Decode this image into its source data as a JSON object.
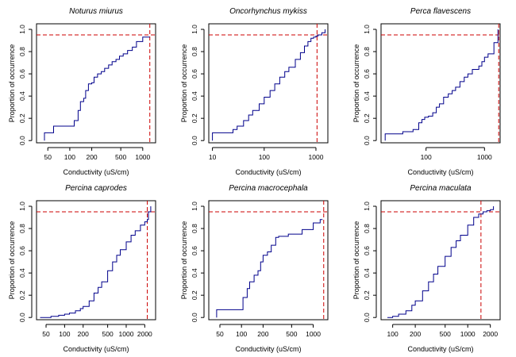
{
  "colors": {
    "curve": "#00008b",
    "reference": "#cc0000",
    "axis": "#000000"
  },
  "chart_data": [
    {
      "type": "line",
      "step": true,
      "xscale": "log",
      "title": "Noturus miurus",
      "xlabel": "Conductivity (uS/cm)",
      "ylabel": "Proportion of occurrence",
      "xlim": [
        35,
        1500
      ],
      "ylim": [
        -0.02,
        1.05
      ],
      "xticks": [
        50,
        100,
        200,
        500,
        1000
      ],
      "xticklabels": [
        "50",
        "100",
        "200",
        "500",
        "1000"
      ],
      "yticks": [
        0,
        0.2,
        0.4,
        0.6,
        0.8,
        1.0
      ],
      "yticklabels": [
        "0.0",
        "0.2",
        "0.4",
        "0.6",
        "0.8",
        "1.0"
      ],
      "ref_y": 0.95,
      "ref_x": 1250,
      "x": [
        45,
        45,
        60,
        60,
        115,
        115,
        130,
        130,
        140,
        140,
        155,
        155,
        165,
        165,
        180,
        180,
        200,
        200,
        215,
        215,
        240,
        240,
        270,
        270,
        300,
        300,
        340,
        340,
        380,
        380,
        430,
        430,
        480,
        480,
        540,
        540,
        620,
        620,
        720,
        720,
        820,
        820,
        1000,
        1000,
        1250
      ],
      "y": [
        0.0,
        0.07,
        0.07,
        0.13,
        0.13,
        0.18,
        0.18,
        0.27,
        0.27,
        0.35,
        0.35,
        0.38,
        0.38,
        0.45,
        0.45,
        0.51,
        0.51,
        0.52,
        0.52,
        0.57,
        0.57,
        0.6,
        0.6,
        0.62,
        0.62,
        0.65,
        0.65,
        0.68,
        0.68,
        0.71,
        0.71,
        0.73,
        0.73,
        0.76,
        0.76,
        0.78,
        0.78,
        0.81,
        0.81,
        0.84,
        0.84,
        0.89,
        0.89,
        0.93,
        0.93
      ]
    },
    {
      "type": "line",
      "step": true,
      "xscale": "log",
      "title": "Oncorhynchus mykiss",
      "xlabel": "Conductivity (uS/cm)",
      "ylabel": "Proportion of occurrence",
      "xlim": [
        8.5,
        1700
      ],
      "ylim": [
        -0.02,
        1.05
      ],
      "xticks": [
        10,
        100,
        1000
      ],
      "xticklabels": [
        "10",
        "100",
        "1000"
      ],
      "yticks": [
        0,
        0.2,
        0.4,
        0.6,
        0.8,
        1.0
      ],
      "yticklabels": [
        "0.0",
        "0.2",
        "0.4",
        "0.6",
        "0.8",
        "1.0"
      ],
      "ref_y": 0.95,
      "ref_x": 1050,
      "x": [
        10,
        10,
        20,
        25,
        30,
        40,
        50,
        60,
        80,
        100,
        130,
        160,
        200,
        250,
        300,
        400,
        500,
        600,
        700,
        800,
        900,
        1000,
        1100,
        1300,
        1500
      ],
      "y": [
        0.0,
        0.07,
        0.07,
        0.1,
        0.13,
        0.18,
        0.23,
        0.27,
        0.33,
        0.39,
        0.45,
        0.51,
        0.57,
        0.62,
        0.66,
        0.73,
        0.79,
        0.85,
        0.89,
        0.92,
        0.93,
        0.94,
        0.95,
        0.97,
        1.0
      ]
    },
    {
      "type": "line",
      "step": true,
      "xscale": "log",
      "title": "Perca flavescens",
      "xlabel": "Conductivity (uS/cm)",
      "ylabel": "Proportion of occurrence",
      "xlim": [
        17,
        1850
      ],
      "ylim": [
        -0.02,
        1.05
      ],
      "xticks": [
        100,
        1000
      ],
      "xticklabels": [
        "100",
        "1000"
      ],
      "yticks": [
        0,
        0.2,
        0.4,
        0.6,
        0.8,
        1.0
      ],
      "yticklabels": [
        "0.0",
        "0.2",
        "0.4",
        "0.6",
        "0.8",
        "1.0"
      ],
      "ref_y": 0.95,
      "ref_x": 1750,
      "x": [
        20,
        20,
        40,
        40,
        60,
        60,
        75,
        75,
        85,
        85,
        95,
        95,
        110,
        110,
        130,
        130,
        150,
        150,
        170,
        170,
        200,
        200,
        240,
        240,
        280,
        280,
        320,
        320,
        380,
        380,
        450,
        450,
        520,
        520,
        620,
        620,
        800,
        800,
        900,
        900,
        1000,
        1000,
        1150,
        1150,
        1450,
        1450,
        1700,
        1700
      ],
      "y": [
        0.0,
        0.06,
        0.06,
        0.08,
        0.08,
        0.1,
        0.1,
        0.16,
        0.16,
        0.19,
        0.19,
        0.21,
        0.21,
        0.22,
        0.22,
        0.25,
        0.25,
        0.3,
        0.3,
        0.33,
        0.33,
        0.39,
        0.39,
        0.42,
        0.42,
        0.45,
        0.45,
        0.48,
        0.48,
        0.53,
        0.53,
        0.57,
        0.57,
        0.6,
        0.6,
        0.64,
        0.64,
        0.67,
        0.67,
        0.71,
        0.71,
        0.75,
        0.75,
        0.78,
        0.78,
        0.88,
        0.88,
        1.0
      ]
    },
    {
      "type": "line",
      "step": true,
      "xscale": "log",
      "title": "Percina caprodes",
      "xlabel": "Conductivity (uS/cm)",
      "ylabel": "Proportion of occurrence",
      "xlim": [
        35,
        3000
      ],
      "ylim": [
        -0.02,
        1.05
      ],
      "xticks": [
        50,
        100,
        200,
        500,
        1000,
        2000
      ],
      "xticklabels": [
        "50",
        "100",
        "200",
        "500",
        "1000",
        "2000"
      ],
      "yticks": [
        0,
        0.2,
        0.4,
        0.6,
        0.8,
        1.0
      ],
      "yticklabels": [
        "0.0",
        "0.2",
        "0.4",
        "0.6",
        "0.8",
        "1.0"
      ],
      "ref_y": 0.95,
      "ref_x": 2200,
      "x": [
        40,
        60,
        80,
        100,
        120,
        150,
        180,
        200,
        250,
        300,
        350,
        400,
        500,
        600,
        700,
        800,
        1000,
        1200,
        1400,
        1700,
        2000,
        2200,
        2300,
        2500
      ],
      "y": [
        0.0,
        0.01,
        0.02,
        0.03,
        0.04,
        0.06,
        0.08,
        0.1,
        0.15,
        0.22,
        0.27,
        0.32,
        0.42,
        0.5,
        0.56,
        0.61,
        0.68,
        0.74,
        0.78,
        0.83,
        0.86,
        0.88,
        0.95,
        1.0
      ]
    },
    {
      "type": "line",
      "step": true,
      "xscale": "log",
      "title": "Percina macrocephala",
      "xlabel": "Conductivity (uS/cm)",
      "ylabel": "Proportion of occurrence",
      "xlim": [
        35,
        1600
      ],
      "ylim": [
        -0.02,
        1.05
      ],
      "xticks": [
        50,
        100,
        200,
        500,
        1000
      ],
      "xticklabels": [
        "50",
        "100",
        "200",
        "500",
        "1000"
      ],
      "yticks": [
        0,
        0.2,
        0.4,
        0.6,
        0.8,
        1.0
      ],
      "yticklabels": [
        "0.0",
        "0.2",
        "0.4",
        "0.6",
        "0.8",
        "1.0"
      ],
      "ref_y": 0.95,
      "ref_x": 1400,
      "x": [
        45,
        45,
        105,
        105,
        120,
        120,
        130,
        130,
        150,
        150,
        170,
        170,
        185,
        185,
        200,
        200,
        230,
        230,
        260,
        260,
        300,
        300,
        330,
        330,
        450,
        450,
        700,
        700,
        1000,
        1000,
        1250,
        1250,
        1350
      ],
      "y": [
        0.0,
        0.07,
        0.07,
        0.18,
        0.18,
        0.26,
        0.26,
        0.32,
        0.32,
        0.38,
        0.38,
        0.42,
        0.42,
        0.5,
        0.5,
        0.56,
        0.56,
        0.59,
        0.59,
        0.65,
        0.65,
        0.72,
        0.72,
        0.73,
        0.73,
        0.75,
        0.75,
        0.79,
        0.79,
        0.85,
        0.85,
        0.88,
        0.88
      ]
    },
    {
      "type": "line",
      "step": true,
      "xscale": "log",
      "title": "Percina maculata",
      "xlabel": "Conductivity (uS/cm)",
      "ylabel": "Proportion of occurrence",
      "xlim": [
        70,
        2700
      ],
      "ylim": [
        -0.02,
        1.05
      ],
      "xticks": [
        100,
        200,
        500,
        1000,
        2000
      ],
      "xticklabels": [
        "100",
        "200",
        "500",
        "1000",
        "2000"
      ],
      "yticks": [
        0,
        0.2,
        0.4,
        0.6,
        0.8,
        1.0
      ],
      "yticklabels": [
        "0.0",
        "0.2",
        "0.4",
        "0.6",
        "0.8",
        "1.0"
      ],
      "ref_y": 0.95,
      "ref_x": 1500,
      "x": [
        85,
        100,
        120,
        150,
        180,
        200,
        250,
        300,
        350,
        400,
        500,
        600,
        700,
        800,
        1000,
        1200,
        1400,
        1600,
        1800,
        2000,
        2200,
        2200
      ],
      "y": [
        0.0,
        0.01,
        0.03,
        0.06,
        0.11,
        0.15,
        0.24,
        0.32,
        0.39,
        0.46,
        0.55,
        0.63,
        0.69,
        0.74,
        0.83,
        0.9,
        0.93,
        0.95,
        0.96,
        0.97,
        0.97,
        1.0
      ]
    }
  ]
}
